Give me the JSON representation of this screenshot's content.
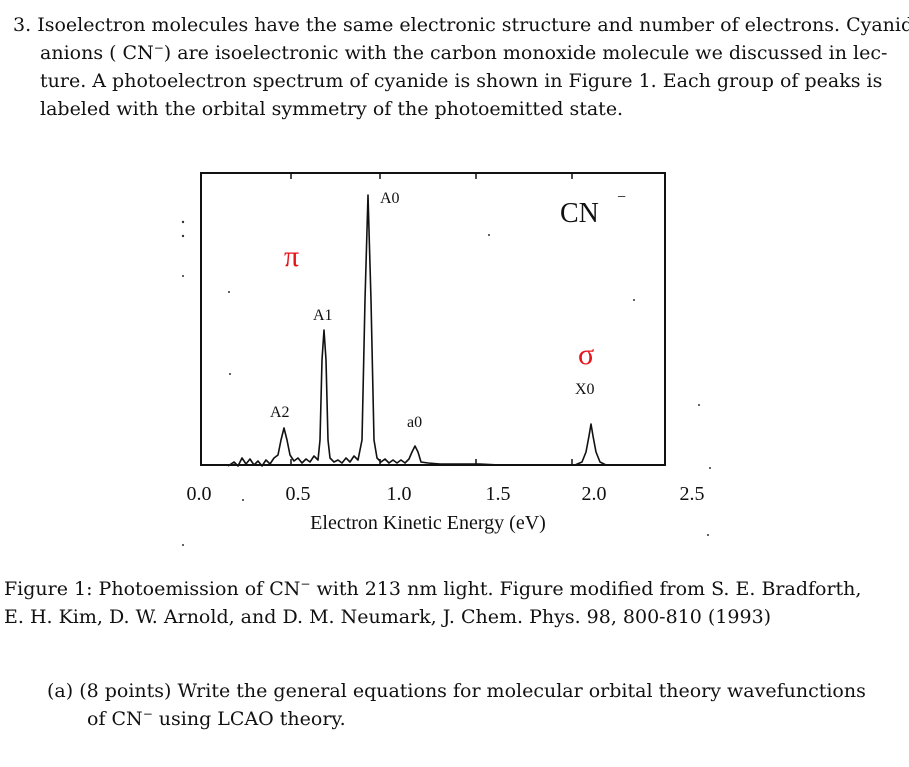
{
  "question": {
    "number": "3.",
    "lines": [
      "Isoelectron molecules have the same electronic structure and number of electrons. Cyanide",
      "are isoelectronic with the carbon monoxide molecule we discussed in lec-",
      "ture. A photoelectron spectrum of cyanide is shown in Figure 1. Each group of peaks is",
      "labeled with the orbital symmetry of the photoemitted state."
    ],
    "line2_prefix": "anions ( CN",
    "line2_sup": "−",
    "line2_close": ")"
  },
  "figure": {
    "species_label": "CN",
    "species_sup": "−",
    "peak_labels": [
      "A0",
      "A1",
      "A2",
      "a0",
      "X0"
    ],
    "symmetry_labels": {
      "pi": "π",
      "sigma": "σ"
    },
    "x_tick_labels": [
      "0.0",
      "0.5",
      "1.0",
      "1.5",
      "2.0",
      "2.5"
    ],
    "x_axis_label": "Electron Kinetic Energy (eV)",
    "symmetry_color": "#e8141b"
  },
  "caption": {
    "line1_prefix": "Figure 1: Photoemission of CN",
    "line1_sup": "−",
    "line1_rest": " with 213 nm light. Figure modified from S. E. Bradforth,",
    "line2": "E. H. Kim, D. W. Arnold, and D. M. Neumark, J. Chem. Phys. 98, 800-810 (1993)"
  },
  "subquestion": {
    "marker": "(a)",
    "line1": "(8 points) Write the general equations for molecular orbital theory wavefunctions",
    "line2_prefix": "of CN",
    "line2_sup": "−",
    "line2_rest": " using LCAO theory."
  }
}
